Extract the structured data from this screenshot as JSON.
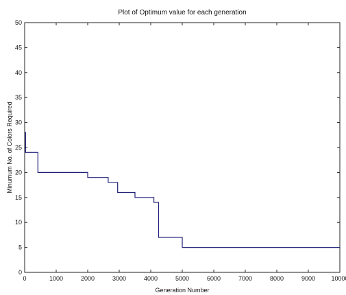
{
  "chart_data": {
    "type": "line",
    "title": "Plot of Optimum value for each generation",
    "xlabel": "Generation Number",
    "ylabel": "Minumum No. of Colors Required",
    "xlim": [
      0,
      10000
    ],
    "ylim": [
      0,
      50
    ],
    "xticks": [
      0,
      1000,
      2000,
      3000,
      4000,
      5000,
      6000,
      7000,
      8000,
      9000,
      10000
    ],
    "yticks": [
      0,
      5,
      10,
      15,
      20,
      25,
      30,
      35,
      40,
      45,
      50
    ],
    "grid": false,
    "line_color": "#1f1f7a",
    "series": [
      {
        "step": "post",
        "x": [
          0,
          30,
          420,
          2000,
          2650,
          2950,
          3500,
          4100,
          4250,
          5000,
          10000
        ],
        "y": [
          28,
          24,
          20,
          19,
          18,
          16,
          15,
          14,
          7,
          5,
          5
        ]
      }
    ]
  }
}
